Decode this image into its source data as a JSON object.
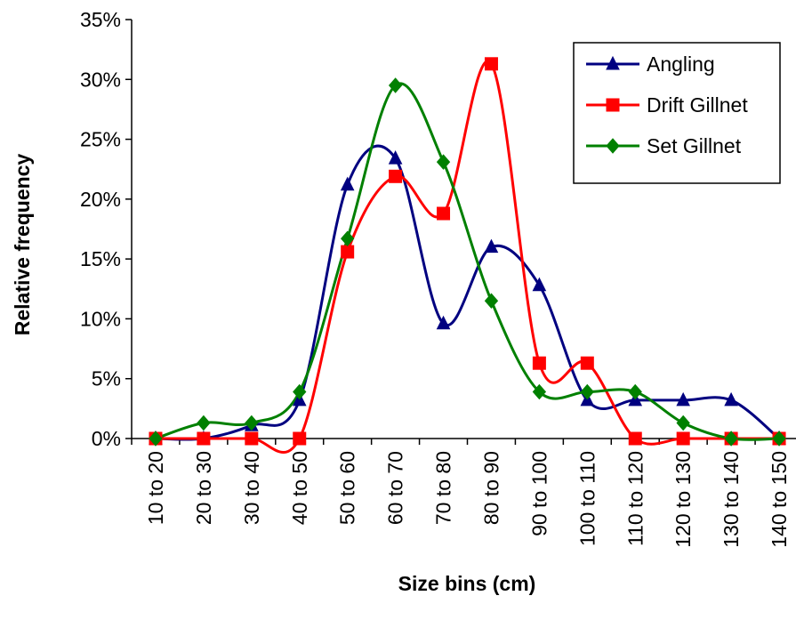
{
  "chart_data": {
    "type": "line",
    "title": "",
    "xlabel": "Size bins (cm)",
    "ylabel": "Relative frequency",
    "categories": [
      "10 to 20",
      "20 to 30",
      "30 to 40",
      "40 to 50",
      "50 to 60",
      "60 to 70",
      "70 to 80",
      "80 to 90",
      "90 to 100",
      "100 to 110",
      "110 to 120",
      "120 to 130",
      "130 to 140",
      "140 to 150"
    ],
    "ylim": [
      0,
      35
    ],
    "y_ticks": [
      0,
      5,
      10,
      15,
      20,
      25,
      30,
      35
    ],
    "y_tick_labels": [
      "0%",
      "5%",
      "10%",
      "15%",
      "20%",
      "25%",
      "30%",
      "35%"
    ],
    "legend_position": "top-right",
    "grid": false,
    "smoothed": true,
    "series": [
      {
        "name": "Angling",
        "marker": "triangle",
        "color": "#000080",
        "values": [
          0,
          0,
          1.1,
          3.2,
          21.2,
          23.4,
          9.6,
          16.0,
          12.8,
          3.2,
          3.2,
          3.2,
          3.2,
          0
        ]
      },
      {
        "name": "Drift Gillnet",
        "marker": "square",
        "color": "#ff0000",
        "values": [
          0,
          0,
          0,
          0,
          15.6,
          21.9,
          18.8,
          31.3,
          6.3,
          6.3,
          0,
          0,
          0,
          0
        ]
      },
      {
        "name": "Set Gillnet",
        "marker": "diamond",
        "color": "#008000",
        "values": [
          0,
          1.3,
          1.3,
          3.9,
          16.7,
          29.5,
          23.1,
          11.5,
          3.9,
          3.9,
          3.9,
          1.3,
          0,
          0
        ]
      }
    ]
  }
}
